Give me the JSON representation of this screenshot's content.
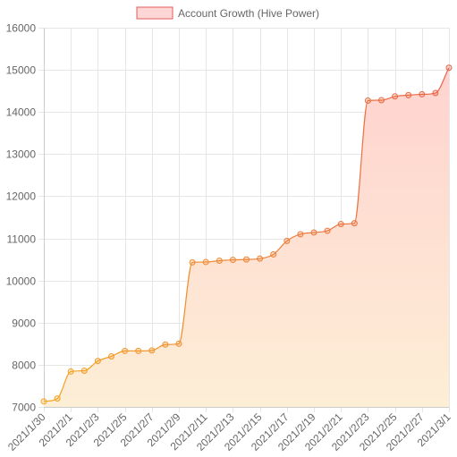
{
  "chart_data": {
    "type": "area",
    "legend": {
      "position": "top",
      "entries": [
        "Account Growth (Hive Power)"
      ]
    },
    "series": [
      {
        "name": "Account Growth (Hive Power)",
        "values": [
          7130,
          7200,
          7840,
          7860,
          8090,
          8200,
          8330,
          8330,
          8340,
          8480,
          8500,
          10430,
          10440,
          10470,
          10490,
          10500,
          10520,
          10620,
          10940,
          11100,
          11140,
          11180,
          11340,
          11360,
          14270,
          14280,
          14370,
          14400,
          14420,
          14450,
          15050
        ]
      }
    ],
    "categories": [
      "2021/1/30",
      "2021/1/31",
      "2021/2/1",
      "2021/2/2",
      "2021/2/3",
      "2021/2/4",
      "2021/2/5",
      "2021/2/6",
      "2021/2/7",
      "2021/2/8",
      "2021/2/9",
      "2021/2/10",
      "2021/2/11",
      "2021/2/12",
      "2021/2/13",
      "2021/2/14",
      "2021/2/15",
      "2021/2/16",
      "2021/2/17",
      "2021/2/18",
      "2021/2/19",
      "2021/2/20",
      "2021/2/21",
      "2021/2/22",
      "2021/2/23",
      "2021/2/24",
      "2021/2/25",
      "2021/2/26",
      "2021/2/27",
      "2021/2/28",
      "2021/3/1"
    ],
    "x_tick_labels": [
      "2021/1/30",
      "2021/2/1",
      "2021/2/3",
      "2021/2/5",
      "2021/2/7",
      "2021/2/9",
      "2021/2/11",
      "2021/2/13",
      "2021/2/15",
      "2021/2/17",
      "2021/2/19",
      "2021/2/21",
      "2021/2/23",
      "2021/2/25",
      "2021/2/27",
      "2021/3/1"
    ],
    "y_tick_labels": [
      "7000",
      "8000",
      "9000",
      "10000",
      "11000",
      "12000",
      "13000",
      "14000",
      "15000",
      "16000"
    ],
    "ylim": [
      7000,
      16000
    ],
    "grid": true,
    "colors": {
      "line_start": "#f5a623",
      "line_end": "#e8634a",
      "fill_top": "#ffd3cf",
      "fill_bottom": "#fdeed6",
      "legend_fill": "#ffd6d6",
      "legend_stroke": "#e05c5c"
    }
  }
}
